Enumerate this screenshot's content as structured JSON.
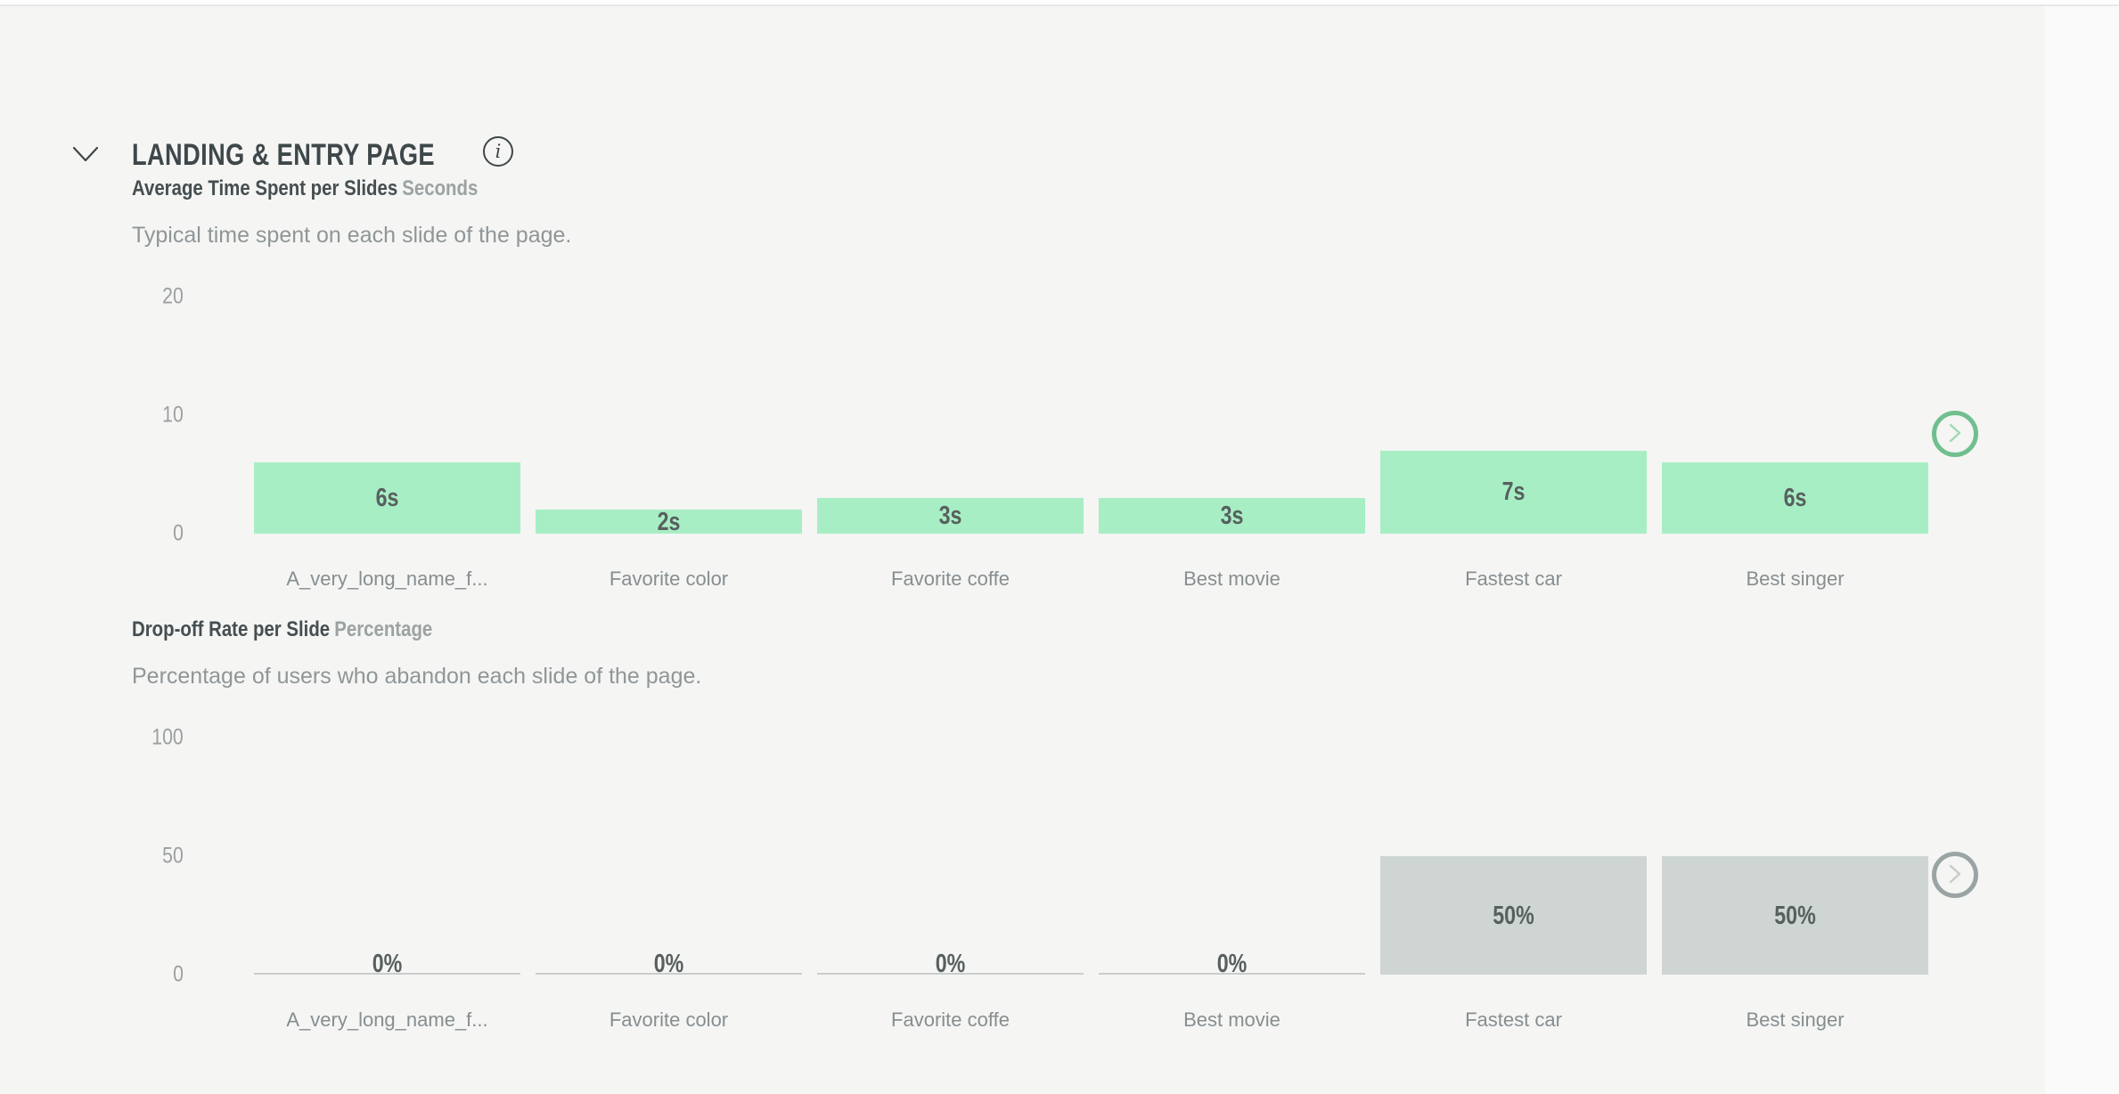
{
  "section": {
    "title": "LANDING & ENTRY PAGE",
    "collapse_icon": "chevron-down",
    "info_icon": "info",
    "text_color": "#3e4749"
  },
  "colors": {
    "page_background": "#f5f5f4",
    "top_strip": "#fdfdfd",
    "divider": "#e8e8e6",
    "zero_line": "#c9cdcc"
  },
  "chart_data": [
    {
      "type": "bar",
      "title": "Average Time Spent per Slides",
      "unit": "Seconds",
      "subtitle": "Typical time spent on each slide of the page.",
      "categories": [
        "A_very_long_name_f...",
        "Favorite color",
        "Favorite coffe",
        "Best movie",
        "Fastest car",
        "Best singer"
      ],
      "values": [
        6,
        2,
        3,
        3,
        7,
        6
      ],
      "value_labels": [
        "6s",
        "2s",
        "3s",
        "3s",
        "7s",
        "6s"
      ],
      "yticks": [
        "20",
        "10",
        "0"
      ],
      "ylim": [
        0,
        20
      ],
      "grid": false,
      "bar_color": "#a8eec4",
      "nav_button": {
        "icon": "chevron-right",
        "ring_color": "#70bf8e",
        "chevron_color": "#a0d8b6"
      }
    },
    {
      "type": "bar",
      "title": "Drop-off Rate per Slide",
      "unit": "Percentage",
      "subtitle": "Percentage of users who abandon each slide of the page.",
      "categories": [
        "A_very_long_name_f...",
        "Favorite color",
        "Favorite coffe",
        "Best movie",
        "Fastest car",
        "Best singer"
      ],
      "values": [
        0,
        0,
        0,
        0,
        50,
        50
      ],
      "value_labels": [
        "0%",
        "0%",
        "0%",
        "0%",
        "50%",
        "50%"
      ],
      "yticks": [
        "100",
        "50",
        "0"
      ],
      "ylim": [
        0,
        100
      ],
      "grid": false,
      "bar_color": "#ced5d3",
      "nav_button": {
        "icon": "chevron-right",
        "ring_color": "#9ba4a4",
        "chevron_color": "#c6cbca"
      }
    }
  ]
}
